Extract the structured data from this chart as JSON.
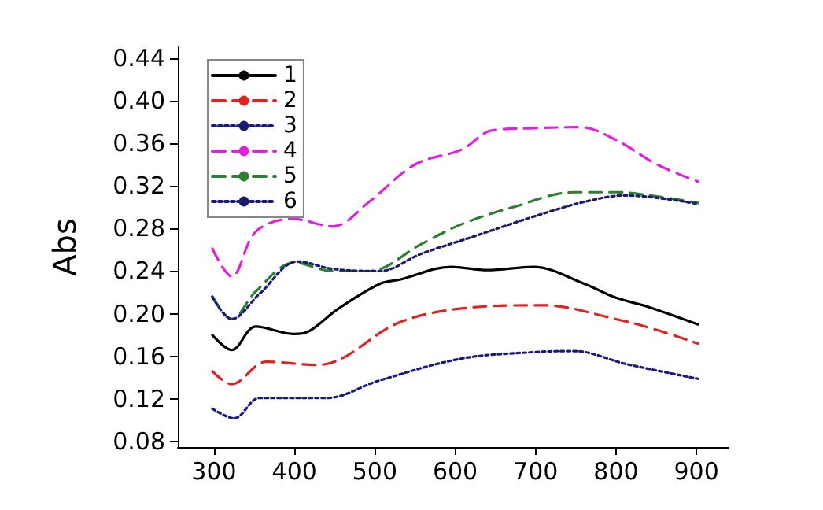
{
  "chart_data": {
    "type": "line",
    "ylabel": "Abs",
    "xlim": [
      255,
      940
    ],
    "ylim": [
      0.075,
      0.45
    ],
    "xticks": [
      300,
      400,
      500,
      600,
      700,
      800,
      900
    ],
    "yticks": [
      0.08,
      {
        "value": 0.12,
        "label": "0.12"
      },
      {
        "value": 0.16,
        "label": "0.16"
      },
      {
        "value": 0.2,
        "label": "0.20"
      },
      {
        "value": 0.24,
        "label": "0.24"
      },
      {
        "value": 0.28,
        "label": "0.28"
      },
      {
        "value": 0.32,
        "label": "0.32"
      },
      {
        "value": 0.36,
        "label": "0.36"
      },
      {
        "value": 0.4,
        "label": "0.40"
      },
      {
        "value": 0.44,
        "label": "0.44"
      }
    ],
    "grid": false,
    "legend": "top left",
    "marker": "none",
    "series": [
      {
        "name": "1",
        "color": "#000000",
        "line_style": "solid",
        "x": [
          298,
          322,
          352,
          400,
          419,
          455,
          506,
          531,
          595,
          640,
          697,
          761,
          800,
          838,
          902
        ],
        "values": [
          0.18,
          0.166,
          0.188,
          0.181,
          0.184,
          0.205,
          0.228,
          0.232,
          0.244,
          0.241,
          0.244,
          0.228,
          0.215,
          0.207,
          0.19
        ]
      },
      {
        "name": "2",
        "color": "#dd2222",
        "line_style": "dashed",
        "x": [
          298,
          322,
          365,
          429,
          531,
          608,
          710,
          800,
          850,
          902
        ],
        "values": [
          0.146,
          0.134,
          0.155,
          0.152,
          0.192,
          0.205,
          0.208,
          0.195,
          0.185,
          0.172
        ]
      },
      {
        "name": "3",
        "color": "#1a1a7a",
        "line_style": "dotted",
        "x": [
          298,
          325,
          357,
          440,
          504,
          608,
          697,
          748,
          812,
          902
        ],
        "values": [
          0.111,
          0.102,
          0.121,
          0.121,
          0.137,
          0.158,
          0.164,
          0.165,
          0.153,
          0.139
        ]
      },
      {
        "name": "4",
        "color": "#dd22dd",
        "line_style": "dashed",
        "x": [
          298,
          322,
          352,
          397,
          448,
          493,
          550,
          608,
          646,
          697,
          755,
          800,
          851,
          902
        ],
        "values": [
          0.261,
          0.235,
          0.277,
          0.289,
          0.282,
          0.305,
          0.34,
          0.354,
          0.372,
          0.374,
          0.375,
          0.363,
          0.34,
          0.324
        ]
      },
      {
        "name": "5",
        "color": "#2e7d32",
        "line_style": "dashed",
        "x": [
          298,
          322,
          352,
          400,
          448,
          493,
          557,
          608,
          672,
          748,
          800,
          851,
          902
        ],
        "values": [
          0.216,
          0.195,
          0.221,
          0.248,
          0.24,
          0.24,
          0.265,
          0.284,
          0.3,
          0.314,
          0.314,
          0.31,
          0.304
        ]
      },
      {
        "name": "6",
        "color": "#1a1a6e",
        "line_style": "dotted",
        "x": [
          298,
          322,
          357,
          404,
          448,
          506,
          557,
          621,
          697,
          761,
          812,
          902
        ],
        "values": [
          0.216,
          0.195,
          0.219,
          0.249,
          0.242,
          0.24,
          0.256,
          0.272,
          0.291,
          0.305,
          0.311,
          0.303
        ]
      }
    ]
  }
}
